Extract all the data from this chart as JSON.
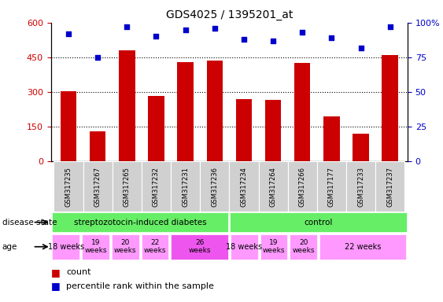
{
  "title": "GDS4025 / 1395201_at",
  "samples": [
    "GSM317235",
    "GSM317267",
    "GSM317265",
    "GSM317232",
    "GSM317231",
    "GSM317236",
    "GSM317234",
    "GSM317264",
    "GSM317266",
    "GSM317177",
    "GSM317233",
    "GSM317237"
  ],
  "counts": [
    305,
    130,
    480,
    285,
    430,
    435,
    270,
    265,
    425,
    195,
    120,
    460
  ],
  "percentiles": [
    92,
    75,
    97,
    90,
    95,
    96,
    88,
    87,
    93,
    89,
    82,
    97
  ],
  "ylim_left": [
    0,
    600
  ],
  "ylim_right": [
    0,
    100
  ],
  "yticks_left": [
    0,
    150,
    300,
    450,
    600
  ],
  "ytick_labels_left": [
    "0",
    "150",
    "300",
    "450",
    "600"
  ],
  "yticks_right": [
    0,
    25,
    50,
    75,
    100
  ],
  "ytick_labels_right": [
    "0",
    "25",
    "50",
    "75",
    "100%"
  ],
  "bar_color": "#CC0000",
  "dot_color": "#0000CC",
  "grid_color": "#000000",
  "legend_count_label": "count",
  "legend_percentile_label": "percentile rank within the sample",
  "disease_state_label": "disease state",
  "age_label": "age",
  "tick_color_left": "#CC0000",
  "tick_color_right": "#0000CC",
  "gray_bg": "#D0D0D0",
  "green_bg": "#66EE66",
  "pink_bg": "#FF99FF",
  "pink_dark_bg": "#EE66EE",
  "age_groups": [
    {
      "start": 0,
      "end": 1,
      "label": "18 weeks",
      "color": "#FF99FF",
      "fontsize": 7
    },
    {
      "start": 1,
      "end": 2,
      "label": "19\nweeks",
      "color": "#FF99FF",
      "fontsize": 6.5
    },
    {
      "start": 2,
      "end": 3,
      "label": "20\nweeks",
      "color": "#FF99FF",
      "fontsize": 6.5
    },
    {
      "start": 3,
      "end": 4,
      "label": "22\nweeks",
      "color": "#FF99FF",
      "fontsize": 6.5
    },
    {
      "start": 4,
      "end": 6,
      "label": "26\nweeks",
      "color": "#EE55EE",
      "fontsize": 6.5
    },
    {
      "start": 6,
      "end": 7,
      "label": "18 weeks",
      "color": "#FF99FF",
      "fontsize": 7
    },
    {
      "start": 7,
      "end": 8,
      "label": "19\nweeks",
      "color": "#FF99FF",
      "fontsize": 6.5
    },
    {
      "start": 8,
      "end": 9,
      "label": "20\nweeks",
      "color": "#FF99FF",
      "fontsize": 6.5
    },
    {
      "start": 9,
      "end": 12,
      "label": "22 weeks",
      "color": "#FF99FF",
      "fontsize": 7
    }
  ]
}
